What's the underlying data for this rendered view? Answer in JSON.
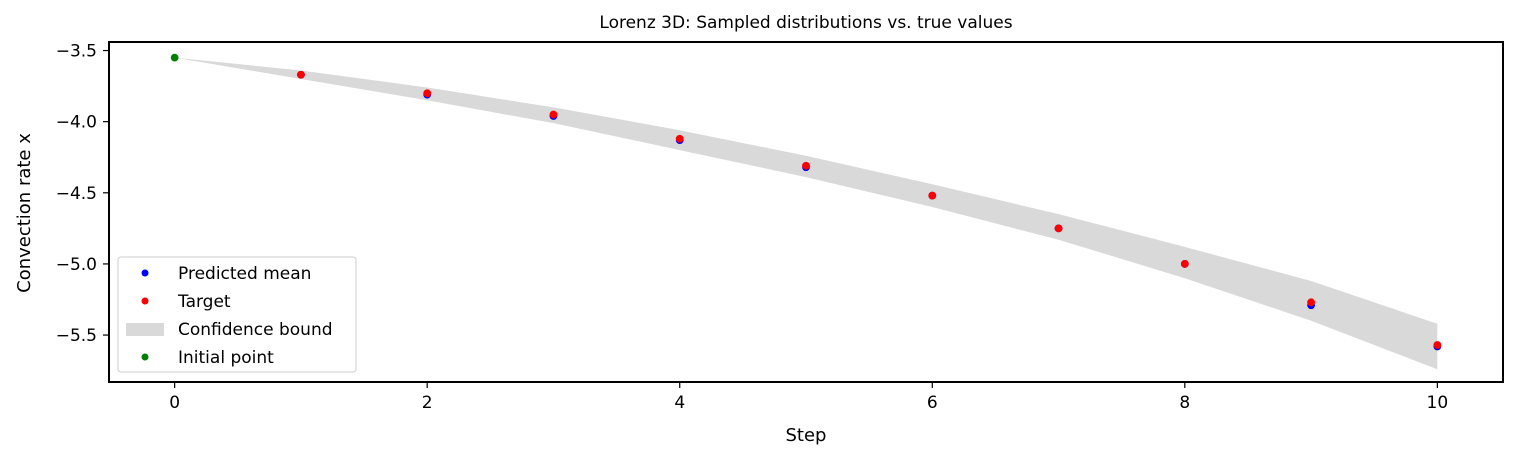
{
  "chart_data": {
    "type": "scatter",
    "title": "Lorenz 3D: Sampled distributions vs. true values",
    "xlabel": "Step",
    "ylabel": "Convection rate x",
    "xlim": [
      -0.52,
      10.52
    ],
    "ylim": [
      -5.83,
      -3.44
    ],
    "xticks": [
      0,
      2,
      4,
      6,
      8,
      10
    ],
    "yticks": [
      -3.5,
      -4.0,
      -4.5,
      -5.0,
      -5.5
    ],
    "grid": false,
    "legend_position": "lower-left",
    "series": [
      {
        "name": "Predicted mean",
        "kind": "points",
        "color": "#0000ff",
        "x": [
          1,
          2,
          3,
          4,
          5,
          6,
          7,
          8,
          9,
          10
        ],
        "y": [
          -3.67,
          -3.81,
          -3.96,
          -4.13,
          -4.32,
          -4.52,
          -4.75,
          -5.0,
          -5.29,
          -5.58
        ]
      },
      {
        "name": "Target",
        "kind": "points",
        "color": "#ff0000",
        "x": [
          1,
          2,
          3,
          4,
          5,
          6,
          7,
          8,
          9,
          10
        ],
        "y": [
          -3.67,
          -3.8,
          -3.95,
          -4.12,
          -4.31,
          -4.52,
          -4.75,
          -5.0,
          -5.27,
          -5.57
        ]
      },
      {
        "name": "Confidence bound",
        "kind": "band",
        "color": "#d9d9d9",
        "x": [
          0,
          1,
          2,
          3,
          4,
          5,
          6,
          7,
          8,
          9,
          10
        ],
        "lower": [
          -3.55,
          -3.7,
          -3.85,
          -4.01,
          -4.2,
          -4.39,
          -4.6,
          -4.83,
          -5.1,
          -5.4,
          -5.74
        ],
        "upper": [
          -3.55,
          -3.64,
          -3.76,
          -3.9,
          -4.06,
          -4.24,
          -4.44,
          -4.65,
          -4.88,
          -5.12,
          -5.42
        ]
      },
      {
        "name": "Initial point",
        "kind": "points",
        "color": "#008000",
        "x": [
          0
        ],
        "y": [
          -3.55
        ]
      }
    ]
  }
}
